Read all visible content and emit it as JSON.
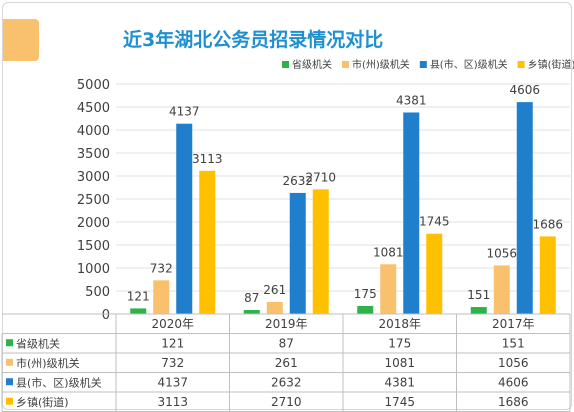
{
  "chart_data": {
    "type": "bar",
    "title": "近3年湖北公务员招录情况对比",
    "categories": [
      "2020年",
      "2019年",
      "2018年",
      "2017年"
    ],
    "series": [
      {
        "name": "省级机关",
        "color": "#2cb34a",
        "values": [
          121,
          87,
          175,
          151
        ]
      },
      {
        "name": "市(州)级机关",
        "color": "#f9c16d",
        "values": [
          732,
          261,
          1081,
          1056
        ]
      },
      {
        "name": "县(市、区)级机关",
        "color": "#1f7fcc",
        "values": [
          4137,
          2632,
          4381,
          4606
        ]
      },
      {
        "name": "乡镇(街道)",
        "color": "#ffc000",
        "values": [
          3113,
          2710,
          1745,
          1686
        ]
      }
    ],
    "ylim": [
      0,
      5000
    ],
    "yticks": [
      0,
      500,
      1000,
      1500,
      2000,
      2500,
      3000,
      3500,
      4000,
      4500,
      5000
    ],
    "grid": true,
    "legend": "top-right",
    "data_table": true
  },
  "colors": {
    "title": "#1f8fd0",
    "decor": "#f9c16d",
    "grid": "#e0e0e0",
    "text": "#404040"
  }
}
